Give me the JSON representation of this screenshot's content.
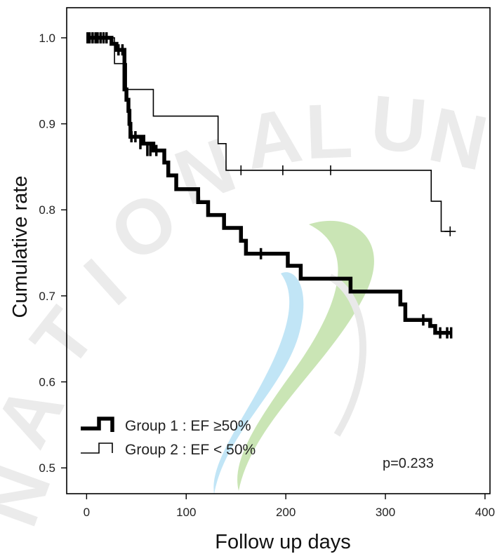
{
  "chart_data": {
    "type": "line",
    "subtype": "kaplan-meier",
    "xlabel": "Follow up days",
    "ylabel": "Cumulative rate",
    "xlim": [
      -20,
      405
    ],
    "ylim": [
      0.47,
      1.035
    ],
    "xticks": [
      0,
      100,
      200,
      300,
      400
    ],
    "yticks": [
      0.5,
      0.6,
      0.7,
      0.8,
      0.9,
      1.0
    ],
    "ytick_labels": [
      "0.5",
      "0.6",
      "0.7",
      "0.8",
      "0.9",
      "1.0"
    ],
    "grid": false,
    "legend_position": "bottom-left",
    "annotation": "p=0.233",
    "watermark": "NATIONAL UNIVERSITY",
    "series": [
      {
        "name": "Group 1 : EF ≥50%",
        "style": "thick",
        "steps": [
          [
            0,
            1.0
          ],
          [
            25,
            0.993
          ],
          [
            30,
            0.986
          ],
          [
            38,
            0.94
          ],
          [
            40,
            0.928
          ],
          [
            42,
            0.915
          ],
          [
            43,
            0.9
          ],
          [
            44,
            0.885
          ],
          [
            57,
            0.877
          ],
          [
            67,
            0.869
          ],
          [
            78,
            0.855
          ],
          [
            82,
            0.84
          ],
          [
            90,
            0.824
          ],
          [
            112,
            0.809
          ],
          [
            122,
            0.794
          ],
          [
            138,
            0.779
          ],
          [
            155,
            0.764
          ],
          [
            160,
            0.749
          ],
          [
            202,
            0.735
          ],
          [
            215,
            0.72
          ],
          [
            265,
            0.705
          ],
          [
            315,
            0.69
          ],
          [
            320,
            0.672
          ],
          [
            345,
            0.665
          ],
          [
            350,
            0.657
          ],
          [
            365,
            0.657
          ]
        ],
        "censored": [
          [
            1,
            1.0
          ],
          [
            3,
            1.0
          ],
          [
            6,
            1.0
          ],
          [
            9,
            1.0
          ],
          [
            11,
            1.0
          ],
          [
            14,
            1.0
          ],
          [
            17,
            1.0
          ],
          [
            20,
            1.0
          ],
          [
            32,
            0.986
          ],
          [
            36,
            0.986
          ],
          [
            45,
            0.885
          ],
          [
            49,
            0.885
          ],
          [
            54,
            0.877
          ],
          [
            61,
            0.869
          ],
          [
            64,
            0.869
          ],
          [
            70,
            0.869
          ],
          [
            175,
            0.749
          ],
          [
            338,
            0.672
          ],
          [
            355,
            0.657
          ],
          [
            362,
            0.657
          ],
          [
            366,
            0.657
          ]
        ]
      },
      {
        "name": "Group 2 : EF < 50%",
        "style": "thin",
        "steps": [
          [
            0,
            1.0
          ],
          [
            28,
            0.97
          ],
          [
            40,
            0.94
          ],
          [
            67,
            0.909
          ],
          [
            132,
            0.877
          ],
          [
            140,
            0.846
          ],
          [
            346,
            0.81
          ],
          [
            356,
            0.775
          ],
          [
            365,
            0.775
          ]
        ],
        "censored": [
          [
            155,
            0.846
          ],
          [
            197,
            0.846
          ],
          [
            245,
            0.846
          ],
          [
            365,
            0.775
          ]
        ]
      }
    ]
  },
  "colors": {
    "line": "#000000",
    "watermark_gray": "#d8d8d8",
    "watermark_green": "#9fd17a",
    "watermark_blue": "#8fd0ef"
  }
}
